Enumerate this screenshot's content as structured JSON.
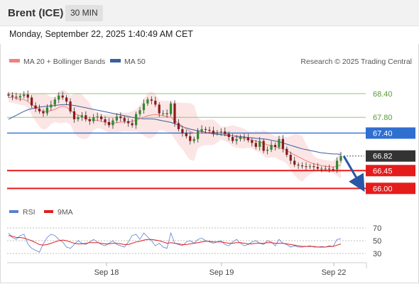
{
  "header": {
    "title": "Brent (ICE)",
    "timeframe": "30 MIN"
  },
  "timestamp": "Monday, September 22, 2025 1:40:49 AM CET",
  "legend": {
    "items": [
      {
        "label": "MA 20 + Bollinger Bands",
        "color": "#f08080"
      },
      {
        "label": "MA 50",
        "color": "#3a5fa0"
      }
    ],
    "copyright": "Research © 2025 Trading Central"
  },
  "rsi_legend": {
    "items": [
      {
        "label": "RSI",
        "color": "#5b7fd0"
      },
      {
        "label": "9MA",
        "color": "#e02020"
      }
    ]
  },
  "chart_data": {
    "type": "candlestick",
    "title": "Brent (ICE)",
    "timeframe": "30 MIN",
    "ylim": [
      65.7,
      68.9
    ],
    "x_ticks": [
      "Sep 18",
      "Sep 19",
      "Sep 22"
    ],
    "levels": [
      {
        "value": 68.4,
        "label": "68.40",
        "color": "#8fc97a",
        "kind": "resistance"
      },
      {
        "value": 67.8,
        "label": "67.80",
        "color": "#8fc97a",
        "kind": "resistance"
      },
      {
        "value": 67.4,
        "label": "67.40",
        "color": "#2f6fd0",
        "kind": "pivot"
      },
      {
        "value": 66.82,
        "label": "66.82",
        "color": "#333333",
        "kind": "last-price"
      },
      {
        "value": 66.45,
        "label": "66.45",
        "color": "#e51c1c",
        "kind": "support"
      },
      {
        "value": 66.0,
        "label": "66.00",
        "color": "#e51c1c",
        "kind": "support"
      }
    ],
    "close": [
      68.35,
      68.32,
      68.3,
      68.34,
      68.38,
      68.3,
      68.1,
      68.02,
      67.95,
      67.9,
      68.05,
      68.12,
      68.25,
      68.35,
      68.3,
      68.2,
      67.95,
      67.75,
      67.8,
      67.85,
      67.75,
      67.7,
      67.8,
      67.82,
      67.75,
      67.68,
      67.6,
      67.72,
      67.82,
      67.78,
      67.7,
      67.65,
      67.6,
      67.88,
      67.98,
      68.15,
      68.25,
      68.22,
      68.12,
      67.9,
      67.9,
      67.88,
      68.15,
      67.65,
      67.5,
      67.4,
      67.32,
      67.2,
      67.25,
      67.45,
      67.5,
      67.48,
      67.46,
      67.4,
      67.42,
      67.44,
      67.38,
      67.3,
      67.2,
      67.25,
      67.3,
      67.28,
      67.22,
      67.15,
      67.05,
      67.2,
      66.95,
      66.98,
      67.1,
      67.05,
      67.25,
      67.0,
      66.85,
      66.7,
      66.6,
      66.58,
      66.56,
      66.55,
      66.56,
      66.54,
      66.5,
      66.5,
      66.5,
      66.49,
      66.48,
      66.7,
      66.82
    ],
    "ma20": [
      68.3,
      68.3,
      68.28,
      68.26,
      68.25,
      68.2,
      68.12,
      68.05,
      67.98,
      67.95,
      67.95,
      67.97,
      68.0,
      68.05,
      68.08,
      68.06,
      67.98,
      67.9,
      67.86,
      67.82,
      67.76,
      67.74,
      67.73,
      67.72,
      67.7,
      67.67,
      67.64,
      67.65,
      67.66,
      67.68,
      67.68,
      67.68,
      67.7,
      67.72,
      67.76,
      67.8,
      67.84,
      67.86,
      67.87,
      67.86,
      67.84,
      67.82,
      67.8,
      67.72,
      67.64,
      67.58,
      67.5,
      67.44,
      67.4,
      67.4,
      67.4,
      67.41,
      67.42,
      67.42,
      67.41,
      67.4,
      67.38,
      67.36,
      67.33,
      67.3,
      67.28,
      67.26,
      67.24,
      67.22,
      67.2,
      67.18,
      67.14,
      67.1,
      67.08,
      67.05,
      67.03,
      67.0,
      66.96,
      66.9,
      66.85,
      66.8,
      66.75,
      66.7,
      66.66,
      66.62,
      66.6,
      66.58,
      66.56,
      66.55,
      66.54,
      66.56,
      66.6
    ],
    "ma50": [
      67.75,
      67.8,
      67.85,
      67.9,
      67.95,
      67.99,
      68.02,
      68.04,
      68.06,
      68.07,
      68.08,
      68.09,
      68.1,
      68.11,
      68.12,
      68.12,
      68.11,
      68.1,
      68.08,
      68.06,
      68.04,
      68.02,
      68.0,
      67.98,
      67.96,
      67.94,
      67.92,
      67.9,
      67.88,
      67.86,
      67.84,
      67.82,
      67.8,
      67.78,
      67.77,
      67.76,
      67.76,
      67.76,
      67.75,
      67.73,
      67.71,
      67.69,
      67.67,
      67.64,
      67.6,
      67.56,
      67.53,
      67.5,
      67.48,
      67.46,
      67.44,
      67.42,
      67.4,
      67.38,
      67.37,
      67.36,
      67.35,
      67.34,
      67.33,
      67.32,
      67.31,
      67.3,
      67.29,
      67.28,
      67.27,
      67.26,
      67.25,
      67.24,
      67.22,
      67.2,
      67.18,
      67.15,
      67.12,
      67.09,
      67.06,
      67.03,
      67.0,
      66.98,
      66.96,
      66.94,
      66.92,
      66.9,
      66.89,
      66.88,
      66.87,
      66.87,
      66.86
    ],
    "rsi": {
      "ticks": [
        70,
        50,
        30
      ],
      "ylim": [
        20,
        80
      ],
      "rsi": [
        62,
        55,
        52,
        58,
        60,
        45,
        38,
        35,
        32,
        45,
        55,
        60,
        58,
        52,
        48,
        40,
        38,
        44,
        50,
        46,
        44,
        48,
        52,
        48,
        44,
        42,
        46,
        50,
        44,
        42,
        40,
        48,
        58,
        60,
        52,
        62,
        56,
        50,
        42,
        46,
        40,
        38,
        62,
        46,
        44,
        42,
        48,
        50,
        46,
        52,
        54,
        50,
        48,
        46,
        48,
        50,
        44,
        42,
        48,
        52,
        46,
        42,
        44,
        48,
        50,
        46,
        44,
        50,
        48,
        42,
        52,
        46,
        44,
        40,
        42,
        40,
        40,
        41,
        42,
        40,
        40,
        41,
        40,
        42,
        41,
        52,
        53
      ],
      "ma9": [
        58,
        57,
        55,
        55,
        54,
        52,
        50,
        47,
        44,
        43,
        44,
        46,
        48,
        50,
        51,
        50,
        48,
        46,
        45,
        45,
        46,
        47,
        47,
        47,
        46,
        45,
        45,
        46,
        46,
        45,
        44,
        44,
        46,
        48,
        49,
        51,
        52,
        52,
        51,
        50,
        48,
        46,
        47,
        46,
        45,
        44,
        44,
        45,
        46,
        47,
        48,
        49,
        49,
        48,
        48,
        48,
        47,
        46,
        46,
        47,
        47,
        46,
        45,
        45,
        46,
        46,
        46,
        47,
        47,
        46,
        46,
        46,
        45,
        44,
        43,
        42,
        41,
        41,
        41,
        41,
        40,
        40,
        40,
        41,
        41,
        43,
        45
      ]
    },
    "projection": {
      "from": 66.82,
      "to": 66.05
    }
  }
}
